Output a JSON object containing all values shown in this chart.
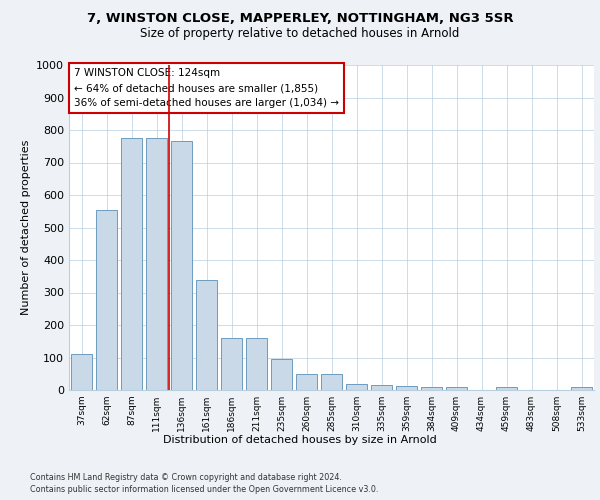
{
  "title1": "7, WINSTON CLOSE, MAPPERLEY, NOTTINGHAM, NG3 5SR",
  "title2": "Size of property relative to detached houses in Arnold",
  "xlabel": "Distribution of detached houses by size in Arnold",
  "ylabel": "Number of detached properties",
  "categories": [
    "37sqm",
    "62sqm",
    "87sqm",
    "111sqm",
    "136sqm",
    "161sqm",
    "186sqm",
    "211sqm",
    "235sqm",
    "260sqm",
    "285sqm",
    "310sqm",
    "335sqm",
    "359sqm",
    "384sqm",
    "409sqm",
    "434sqm",
    "459sqm",
    "483sqm",
    "508sqm",
    "533sqm"
  ],
  "values": [
    110,
    555,
    775,
    775,
    765,
    340,
    160,
    160,
    95,
    50,
    50,
    20,
    15,
    12,
    10,
    10,
    0,
    10,
    0,
    0,
    10
  ],
  "bar_color": "#c9d9e8",
  "bar_edge_color": "#5a90b8",
  "vline_x": 3.5,
  "vline_color": "#cc0000",
  "annotation_title": "7 WINSTON CLOSE: 124sqm",
  "annotation_line1": "← 64% of detached houses are smaller (1,855)",
  "annotation_line2": "36% of semi-detached houses are larger (1,034) →",
  "annotation_box_color": "#cc0000",
  "ylim": [
    0,
    1000
  ],
  "yticks": [
    0,
    100,
    200,
    300,
    400,
    500,
    600,
    700,
    800,
    900,
    1000
  ],
  "footnote1": "Contains HM Land Registry data © Crown copyright and database right 2024.",
  "footnote2": "Contains public sector information licensed under the Open Government Licence v3.0.",
  "bg_color": "#eef2f7",
  "plot_bg_color": "#ffffff",
  "grid_color": "#b8cfe0"
}
